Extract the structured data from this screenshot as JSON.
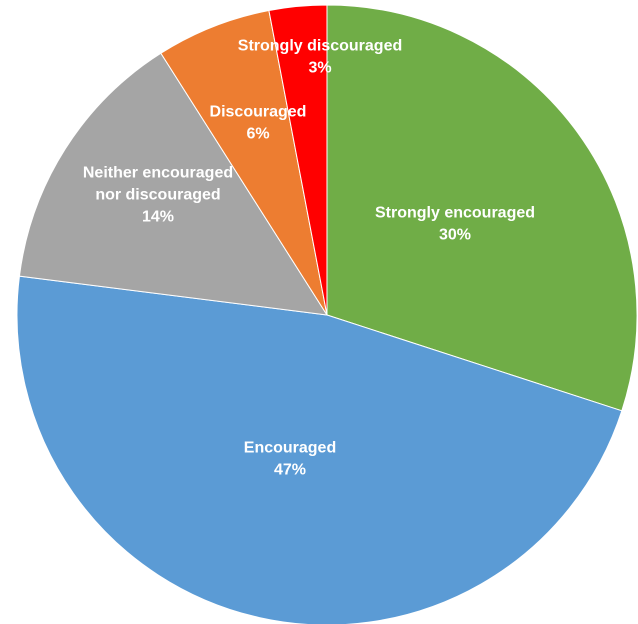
{
  "chart_data": {
    "type": "pie",
    "title": "",
    "start_angle_deg": 0,
    "direction": "clockwise",
    "slices": [
      {
        "label_lines": [
          "Strongly encouraged"
        ],
        "value_text": "30%",
        "value": 30,
        "color": "#70ad47"
      },
      {
        "label_lines": [
          "Encouraged"
        ],
        "value_text": "47%",
        "value": 47,
        "color": "#5b9bd5"
      },
      {
        "label_lines": [
          "Neither encouraged",
          "nor discouraged"
        ],
        "value_text": "14%",
        "value": 14,
        "color": "#a5a5a5"
      },
      {
        "label_lines": [
          "Discouraged"
        ],
        "value_text": "6%",
        "value": 6,
        "color": "#ed7d31"
      },
      {
        "label_lines": [
          "Strongly discouraged"
        ],
        "value_text": "3%",
        "value": 3,
        "color": "#ff0000"
      }
    ]
  }
}
